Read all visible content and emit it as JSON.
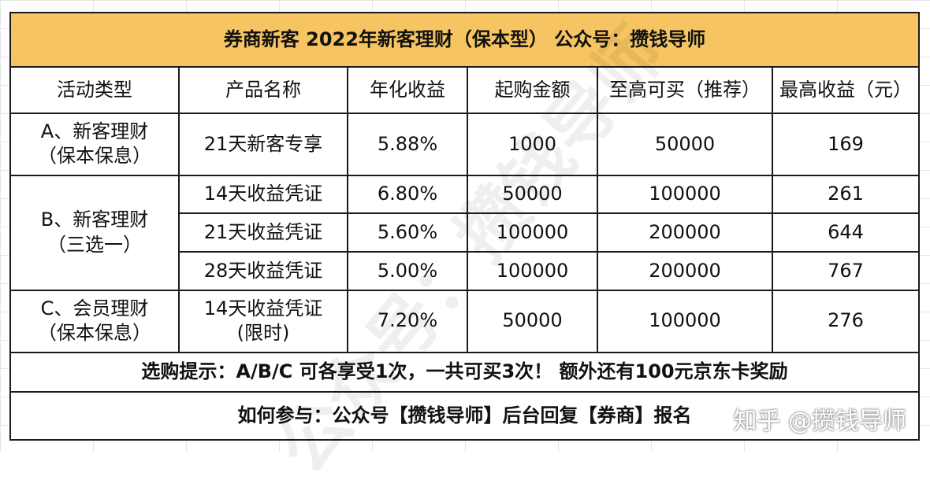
{
  "title": "券商新客  2022年新客理财（保本型）    公众号：攒钱导师",
  "headers": [
    "活动类型",
    "产品名称",
    "年化收益",
    "起购金额",
    "至高可买（推荐）",
    "最高收益（元）"
  ],
  "groups": [
    {
      "type_line1": "A、新客理财",
      "type_line2": "（保本保息）"
    },
    {
      "type_line1": "B、新客理财",
      "type_line2": "（三选一）"
    },
    {
      "type_line1": "C、会员理财",
      "type_line2": "（保本保息）"
    }
  ],
  "rows": [
    {
      "product": "21天新客专享",
      "rate": "5.88%",
      "min": "1000",
      "max": "50000",
      "earn": "169"
    },
    {
      "product": "14天收益凭证",
      "rate": "6.80%",
      "min": "50000",
      "max": "100000",
      "earn": "261"
    },
    {
      "product": "21天收益凭证",
      "rate": "5.60%",
      "min": "100000",
      "max": "200000",
      "earn": "644"
    },
    {
      "product": "28天收益凭证",
      "rate": "5.00%",
      "min": "100000",
      "max": "200000",
      "earn": "767"
    },
    {
      "product": "14天收益凭证",
      "product_line2": "(限时)",
      "rate": "7.20%",
      "min": "50000",
      "max": "100000",
      "earn": "276"
    }
  ],
  "note1": "选购提示：A/B/C 可各享受1次，一共可买3次！ 额外还有100元京东卡奖励",
  "note2": "如何参与：公众号【攒钱导师】后台回复【券商】报名",
  "watermark_text": "公众号：攒钱导师",
  "source_watermark": "知乎 @攒钱导师",
  "colors": {
    "title_bg": "#f6c561",
    "earn_text": "#e0332c"
  }
}
